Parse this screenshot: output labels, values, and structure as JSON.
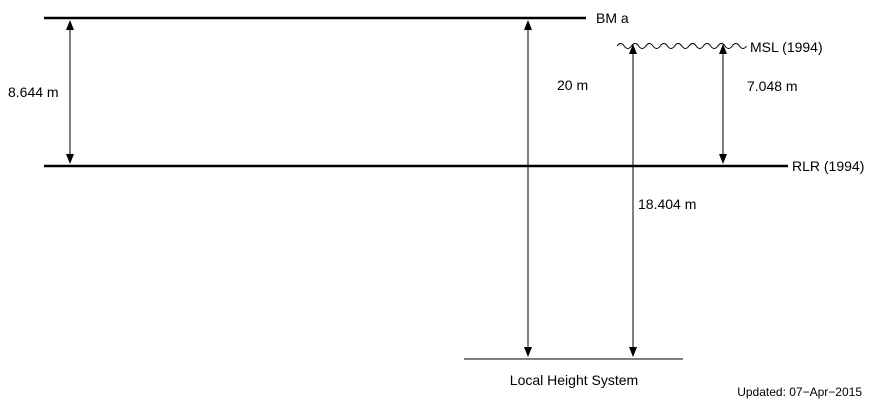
{
  "levels": {
    "bm": "BM a",
    "msl": "MSL (1994)",
    "rlr": "RLR (1994)",
    "local": "Local Height System"
  },
  "measurements": {
    "bm_to_rlr": "8.644 m",
    "bm_to_local": "20 m",
    "msl_to_rlr": "7.048 m",
    "local_to_msl": "18.404 m"
  },
  "footer": {
    "updated": "Updated: 07−Apr−2015"
  },
  "colors": {
    "ink": "#000000",
    "background": "#ffffff"
  }
}
